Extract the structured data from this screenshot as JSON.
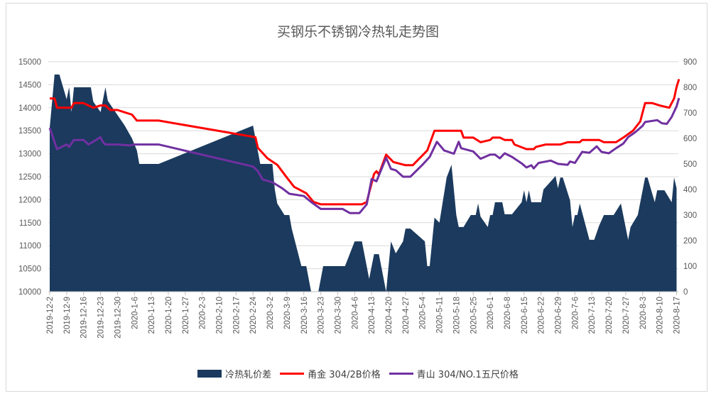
{
  "chart_data": {
    "type": "line",
    "title": "买钢乐不锈钢冷热轧走势图",
    "x_tick_labels": [
      "2019-12-2",
      "2019-12-9",
      "2019-12-16",
      "2019-12-23",
      "2019-12-30",
      "2020-1-6",
      "2020-1-13",
      "2020-1-20",
      "2020-1-27",
      "2020-2-3",
      "2020-2-10",
      "2020-2-17",
      "2020-2-24",
      "2020-3-2",
      "2020-3-9",
      "2020-3-16",
      "2020-3-23",
      "2020-3-30",
      "2020-4-6",
      "2020-4-13",
      "2020-4-20",
      "2020-4-27",
      "2020-5-4",
      "2020-5-11",
      "2020-5-18",
      "2020-5-25",
      "2020-6-1",
      "2020-6-8",
      "2020-6-15",
      "2020-6-22",
      "2020-6-29",
      "2020-7-6",
      "2020-7-13",
      "2020-7-20",
      "2020-7-27",
      "2020-8-3",
      "2020-8-10",
      "2020-8-17"
    ],
    "xlim": [
      "2019-12-2",
      "2020-8-18"
    ],
    "y_left": {
      "ylim": [
        10000,
        15000
      ],
      "ticks": [
        10000,
        10500,
        11000,
        11500,
        12000,
        12500,
        13000,
        13500,
        14000,
        14500,
        15000
      ]
    },
    "y_right": {
      "ylim": [
        0,
        900
      ],
      "ticks": [
        0,
        100,
        200,
        300,
        400,
        500,
        600,
        700,
        800,
        900
      ]
    },
    "grid": true,
    "legend_position": "bottom",
    "series": [
      {
        "name": "冷热轧价差",
        "type": "area",
        "axis": "right",
        "color": "#1b3a5e",
        "points": [
          [
            "2019-12-2",
            642
          ],
          [
            "2019-12-4",
            850
          ],
          [
            "2019-12-6",
            850
          ],
          [
            "2019-12-9",
            753
          ],
          [
            "2019-12-10",
            800
          ],
          [
            "2019-12-11",
            703
          ],
          [
            "2019-12-12",
            800
          ],
          [
            "2019-12-19",
            800
          ],
          [
            "2019-12-20",
            744
          ],
          [
            "2019-12-23",
            703
          ],
          [
            "2019-12-25",
            800
          ],
          [
            "2019-12-26",
            747
          ],
          [
            "2020-1-2",
            650
          ],
          [
            "2020-1-5",
            600
          ],
          [
            "2020-1-7",
            553
          ],
          [
            "2020-1-8",
            500
          ],
          [
            "2020-1-16",
            500
          ],
          [
            "2020-2-24",
            650
          ],
          [
            "2020-2-27",
            500
          ],
          [
            "2020-3-3",
            500
          ],
          [
            "2020-3-4",
            400
          ],
          [
            "2020-3-5",
            345
          ],
          [
            "2020-3-8",
            300
          ],
          [
            "2020-3-10",
            300
          ],
          [
            "2020-3-11",
            247
          ],
          [
            "2020-3-15",
            100
          ],
          [
            "2020-3-17",
            100
          ],
          [
            "2020-3-19",
            0
          ],
          [
            "2020-3-22",
            0
          ],
          [
            "2020-3-24",
            100
          ],
          [
            "2020-4-2",
            100
          ],
          [
            "2020-4-6",
            197
          ],
          [
            "2020-4-9",
            197
          ],
          [
            "2020-4-12",
            50
          ],
          [
            "2020-4-14",
            147
          ],
          [
            "2020-4-16",
            147
          ],
          [
            "2020-4-19",
            0
          ],
          [
            "2020-4-21",
            197
          ],
          [
            "2020-4-23",
            150
          ],
          [
            "2020-4-26",
            197
          ],
          [
            "2020-4-27",
            247
          ],
          [
            "2020-4-29",
            247
          ],
          [
            "2020-5-5",
            197
          ],
          [
            "2020-5-6",
            100
          ],
          [
            "2020-5-7",
            100
          ],
          [
            "2020-5-9",
            290
          ],
          [
            "2020-5-11",
            270
          ],
          [
            "2020-5-14",
            447
          ],
          [
            "2020-5-16",
            497
          ],
          [
            "2020-5-18",
            300
          ],
          [
            "2020-5-19",
            253
          ],
          [
            "2020-5-21",
            253
          ],
          [
            "2020-5-24",
            300
          ],
          [
            "2020-5-26",
            300
          ],
          [
            "2020-5-27",
            345
          ],
          [
            "2020-5-28",
            294
          ],
          [
            "2020-5-31",
            253
          ],
          [
            "2020-6-1",
            300
          ],
          [
            "2020-6-2",
            300
          ],
          [
            "2020-6-3",
            350
          ],
          [
            "2020-6-6",
            350
          ],
          [
            "2020-6-7",
            303
          ],
          [
            "2020-6-10",
            303
          ],
          [
            "2020-6-14",
            350
          ],
          [
            "2020-6-15",
            397
          ],
          [
            "2020-6-16",
            350
          ],
          [
            "2020-6-17",
            397
          ],
          [
            "2020-6-18",
            350
          ],
          [
            "2020-6-22",
            350
          ],
          [
            "2020-6-23",
            400
          ],
          [
            "2020-6-27",
            442
          ],
          [
            "2020-6-28",
            453
          ],
          [
            "2020-6-29",
            405
          ],
          [
            "2020-6-30",
            447
          ],
          [
            "2020-7-1",
            447
          ],
          [
            "2020-7-4",
            358
          ],
          [
            "2020-7-5",
            253
          ],
          [
            "2020-7-6",
            300
          ],
          [
            "2020-7-7",
            300
          ],
          [
            "2020-7-8",
            345
          ],
          [
            "2020-7-12",
            203
          ],
          [
            "2020-7-14",
            203
          ],
          [
            "2020-7-16",
            258
          ],
          [
            "2020-7-18",
            300
          ],
          [
            "2020-7-22",
            300
          ],
          [
            "2020-7-25",
            345
          ],
          [
            "2020-7-28",
            203
          ],
          [
            "2020-7-29",
            253
          ],
          [
            "2020-8-1",
            300
          ],
          [
            "2020-8-4",
            447
          ],
          [
            "2020-8-5",
            447
          ],
          [
            "2020-8-8",
            350
          ],
          [
            "2020-8-9",
            397
          ],
          [
            "2020-8-12",
            397
          ],
          [
            "2020-8-15",
            350
          ],
          [
            "2020-8-16",
            447
          ],
          [
            "2020-8-17",
            405
          ]
        ]
      },
      {
        "name": "甬金 304/2B价格",
        "type": "line",
        "axis": "left",
        "color": "#ff0000",
        "points": [
          [
            "2019-12-2",
            14200
          ],
          [
            "2019-12-4",
            14200
          ],
          [
            "2019-12-5",
            14000
          ],
          [
            "2019-12-11",
            14000
          ],
          [
            "2019-12-12",
            14100
          ],
          [
            "2019-12-16",
            14100
          ],
          [
            "2019-12-18",
            14050
          ],
          [
            "2019-12-20",
            14000
          ],
          [
            "2019-12-23",
            14050
          ],
          [
            "2019-12-25",
            14050
          ],
          [
            "2019-12-27",
            13950
          ],
          [
            "2019-12-30",
            13950
          ],
          [
            "2020-1-2",
            13900
          ],
          [
            "2020-1-5",
            13850
          ],
          [
            "2020-1-7",
            13720
          ],
          [
            "2020-1-16",
            13720
          ],
          [
            "2020-2-25",
            13360
          ],
          [
            "2020-2-26",
            13130
          ],
          [
            "2020-3-1",
            12900
          ],
          [
            "2020-3-5",
            12760
          ],
          [
            "2020-3-9",
            12480
          ],
          [
            "2020-3-12",
            12280
          ],
          [
            "2020-3-17",
            12140
          ],
          [
            "2020-3-20",
            11950
          ],
          [
            "2020-3-23",
            11900
          ],
          [
            "2020-4-9",
            11900
          ],
          [
            "2020-4-11",
            11950
          ],
          [
            "2020-4-14",
            12560
          ],
          [
            "2020-4-15",
            12620
          ],
          [
            "2020-4-16",
            12550
          ],
          [
            "2020-4-19",
            12980
          ],
          [
            "2020-4-22",
            12820
          ],
          [
            "2020-4-27",
            12750
          ],
          [
            "2020-4-30",
            12750
          ],
          [
            "2020-5-6",
            13070
          ],
          [
            "2020-5-9",
            13500
          ],
          [
            "2020-5-20",
            13500
          ],
          [
            "2020-5-21",
            13350
          ],
          [
            "2020-5-25",
            13350
          ],
          [
            "2020-5-28",
            13250
          ],
          [
            "2020-6-1",
            13300
          ],
          [
            "2020-6-2",
            13350
          ],
          [
            "2020-6-5",
            13350
          ],
          [
            "2020-6-7",
            13300
          ],
          [
            "2020-6-10",
            13300
          ],
          [
            "2020-6-11",
            13200
          ],
          [
            "2020-6-16",
            13100
          ],
          [
            "2020-6-19",
            13100
          ],
          [
            "2020-6-20",
            13150
          ],
          [
            "2020-6-24",
            13200
          ],
          [
            "2020-6-30",
            13200
          ],
          [
            "2020-7-3",
            13250
          ],
          [
            "2020-7-8",
            13250
          ],
          [
            "2020-7-9",
            13300
          ],
          [
            "2020-7-16",
            13300
          ],
          [
            "2020-7-18",
            13250
          ],
          [
            "2020-7-23",
            13250
          ],
          [
            "2020-7-26",
            13350
          ],
          [
            "2020-7-30",
            13500
          ],
          [
            "2020-8-2",
            13700
          ],
          [
            "2020-8-4",
            14100
          ],
          [
            "2020-8-7",
            14100
          ],
          [
            "2020-8-10",
            14050
          ],
          [
            "2020-8-14",
            14000
          ],
          [
            "2020-8-16",
            14200
          ],
          [
            "2020-8-17",
            14450
          ],
          [
            "2020-8-18",
            14620
          ]
        ]
      },
      {
        "name": "青山 304/NO.1五尺价格",
        "type": "line",
        "axis": "left",
        "color": "#7030a0",
        "points": [
          [
            "2019-12-2",
            13560
          ],
          [
            "2019-12-3",
            13410
          ],
          [
            "2019-12-5",
            13100
          ],
          [
            "2019-12-9",
            13200
          ],
          [
            "2019-12-10",
            13150
          ],
          [
            "2019-12-12",
            13300
          ],
          [
            "2019-12-16",
            13300
          ],
          [
            "2019-12-17",
            13250
          ],
          [
            "2019-12-18",
            13200
          ],
          [
            "2019-12-23",
            13360
          ],
          [
            "2019-12-24",
            13250
          ],
          [
            "2019-12-25",
            13200
          ],
          [
            "2019-12-30",
            13200
          ],
          [
            "2020-1-4",
            13180
          ],
          [
            "2020-1-6",
            13200
          ],
          [
            "2020-1-16",
            13200
          ],
          [
            "2020-2-24",
            12720
          ],
          [
            "2020-2-26",
            12620
          ],
          [
            "2020-2-28",
            12440
          ],
          [
            "2020-3-3",
            12380
          ],
          [
            "2020-3-7",
            12250
          ],
          [
            "2020-3-10",
            12130
          ],
          [
            "2020-3-16",
            12080
          ],
          [
            "2020-3-19",
            11950
          ],
          [
            "2020-3-23",
            11800
          ],
          [
            "2020-4-1",
            11800
          ],
          [
            "2020-4-4",
            11710
          ],
          [
            "2020-4-8",
            11710
          ],
          [
            "2020-4-11",
            11900
          ],
          [
            "2020-4-13",
            12450
          ],
          [
            "2020-4-15",
            12400
          ],
          [
            "2020-4-19",
            12910
          ],
          [
            "2020-4-21",
            12670
          ],
          [
            "2020-4-23",
            12640
          ],
          [
            "2020-4-26",
            12500
          ],
          [
            "2020-4-29",
            12500
          ],
          [
            "2020-5-4",
            12760
          ],
          [
            "2020-5-7",
            12930
          ],
          [
            "2020-5-10",
            13260
          ],
          [
            "2020-5-13",
            13070
          ],
          [
            "2020-5-17",
            13000
          ],
          [
            "2020-5-19",
            13260
          ],
          [
            "2020-5-20",
            13120
          ],
          [
            "2020-5-25",
            13050
          ],
          [
            "2020-5-28",
            12890
          ],
          [
            "2020-6-1",
            12980
          ],
          [
            "2020-6-3",
            12980
          ],
          [
            "2020-6-5",
            12900
          ],
          [
            "2020-6-7",
            13010
          ],
          [
            "2020-6-10",
            12930
          ],
          [
            "2020-6-14",
            12790
          ],
          [
            "2020-6-16",
            12700
          ],
          [
            "2020-6-18",
            12750
          ],
          [
            "2020-6-19",
            12680
          ],
          [
            "2020-6-21",
            12800
          ],
          [
            "2020-6-26",
            12850
          ],
          [
            "2020-6-29",
            12780
          ],
          [
            "2020-7-3",
            12760
          ],
          [
            "2020-7-4",
            12830
          ],
          [
            "2020-7-6",
            12800
          ],
          [
            "2020-7-9",
            13040
          ],
          [
            "2020-7-12",
            13020
          ],
          [
            "2020-7-15",
            13160
          ],
          [
            "2020-7-17",
            13040
          ],
          [
            "2020-7-20",
            13010
          ],
          [
            "2020-7-23",
            13120
          ],
          [
            "2020-7-26",
            13220
          ],
          [
            "2020-7-28",
            13360
          ],
          [
            "2020-7-31",
            13470
          ],
          [
            "2020-8-3",
            13610
          ],
          [
            "2020-8-4",
            13690
          ],
          [
            "2020-8-9",
            13730
          ],
          [
            "2020-8-11",
            13660
          ],
          [
            "2020-8-13",
            13650
          ],
          [
            "2020-8-15",
            13800
          ],
          [
            "2020-8-17",
            14030
          ],
          [
            "2020-8-18",
            14210
          ]
        ]
      }
    ]
  }
}
